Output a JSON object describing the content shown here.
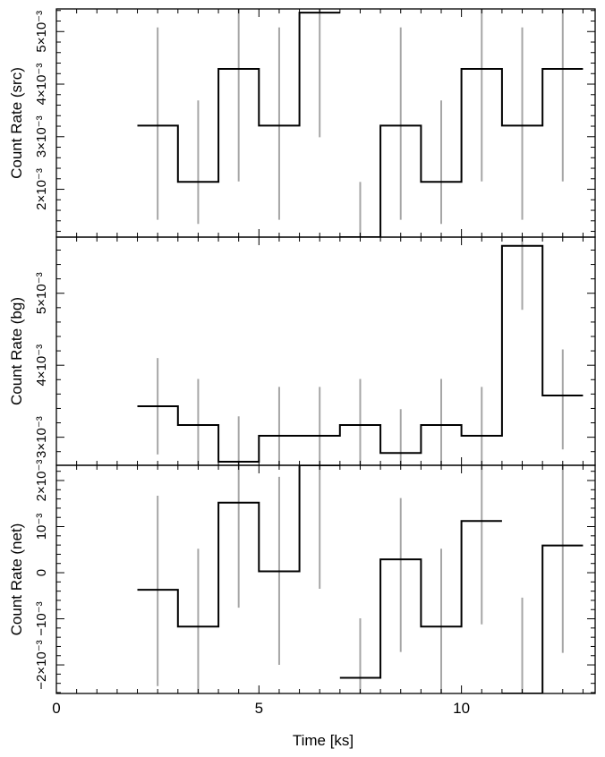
{
  "chart_data": {
    "type": "line",
    "layout": "three stacked step-line panels with shared time axis, grey vertical error bars",
    "x_axis": {
      "label": "Time [ks]",
      "range": [
        0,
        13.3
      ],
      "major_ticks": [
        0,
        5,
        10
      ],
      "tick_labels": [
        "0",
        "5",
        "10"
      ],
      "minor_step": 0.5
    },
    "colors": {
      "line": "#000000",
      "error_bars": "#a6a6a6",
      "frame": "#000000"
    },
    "panels": [
      {
        "name": "src",
        "ylabel": "Count Rate (src)",
        "ylim": [
          0.00109,
          0.00543
        ],
        "ticks": [
          0.002,
          0.003,
          0.004,
          0.005
        ],
        "tick_labels": [
          "2×10⁻³",
          "3×10⁻³",
          "4×10⁻³",
          "5×10⁻³"
        ],
        "minor_step": 0.0002,
        "bin_edges": [
          2,
          3,
          4,
          5,
          6,
          7,
          8,
          9,
          10,
          11,
          12,
          13
        ],
        "values": [
          0.00321,
          0.00214,
          0.00429,
          0.00321,
          0.00536,
          0.00109,
          0.00321,
          0.00214,
          0.00429,
          0.00321,
          0.00429
        ],
        "error_bars": [
          [
            0.00142,
            0.00508
          ],
          [
            0.00134,
            0.00369
          ],
          [
            0.00215,
            0.00543
          ],
          [
            0.00142,
            0.00508
          ],
          [
            0.00299,
            0.00543
          ],
          [
            0.00109,
            0.00214
          ],
          [
            0.00142,
            0.00508
          ],
          [
            0.00134,
            0.00369
          ],
          [
            0.00215,
            0.00543
          ],
          [
            0.00142,
            0.00508
          ],
          [
            0.00215,
            0.00543
          ]
        ]
      },
      {
        "name": "bg",
        "ylabel": "Count Rate (bg)",
        "ylim": [
          0.00261,
          0.00578
        ],
        "ticks": [
          0.003,
          0.004,
          0.005
        ],
        "tick_labels": [
          "3×10⁻³",
          "4×10⁻³",
          "5×10⁻³"
        ],
        "minor_step": 0.0002,
        "bin_edges": [
          2,
          3,
          4,
          5,
          6,
          7,
          8,
          9,
          10,
          11,
          12,
          13
        ],
        "values": [
          0.00343,
          0.00317,
          0.00266,
          0.00302,
          0.00302,
          0.00317,
          0.00278,
          0.00317,
          0.00302,
          0.00566,
          0.00358
        ],
        "error_bars": [
          [
            0.00276,
            0.0041
          ],
          [
            0.00261,
            0.00381
          ],
          [
            0.00261,
            0.00329
          ],
          [
            0.00261,
            0.0037
          ],
          [
            0.00261,
            0.0037
          ],
          [
            0.00261,
            0.00381
          ],
          [
            0.00261,
            0.00339
          ],
          [
            0.00261,
            0.00381
          ],
          [
            0.00261,
            0.0037
          ],
          [
            0.00477,
            0.00578
          ],
          [
            0.00283,
            0.00422
          ]
        ]
      },
      {
        "name": "net",
        "ylabel": "Count Rate (net)",
        "ylim": [
          -0.00262,
          0.00233
        ],
        "ticks": [
          -0.002,
          -0.001,
          0,
          0.001,
          0.002
        ],
        "tick_labels": [
          "−2×10⁻³",
          "−10⁻³",
          "0",
          "10⁻³",
          "2×10⁻³"
        ],
        "minor_step": 0.0002,
        "bin_edges": [
          2,
          3,
          4,
          5,
          6,
          7,
          8,
          9,
          10,
          11,
          12,
          13
        ],
        "values": [
          -0.00037,
          -0.00117,
          0.00152,
          3e-05,
          0.00233,
          -0.00228,
          0.00029,
          -0.00117,
          0.00112,
          -0.00262,
          0.00059
        ],
        "error_bars": [
          [
            -0.00246,
            0.00167
          ],
          [
            -0.00262,
            0.00052
          ],
          [
            -0.00076,
            0.00233
          ],
          [
            -0.002,
            0.00208
          ],
          [
            -0.00035,
            0.00233
          ],
          [
            -0.00262,
            -0.00099
          ],
          [
            -0.00172,
            0.00162
          ],
          [
            -0.00262,
            0.00052
          ],
          [
            -0.00112,
            0.00233
          ],
          [
            -0.00262,
            -0.00054
          ],
          [
            -0.00174,
            0.00233
          ]
        ]
      }
    ]
  }
}
